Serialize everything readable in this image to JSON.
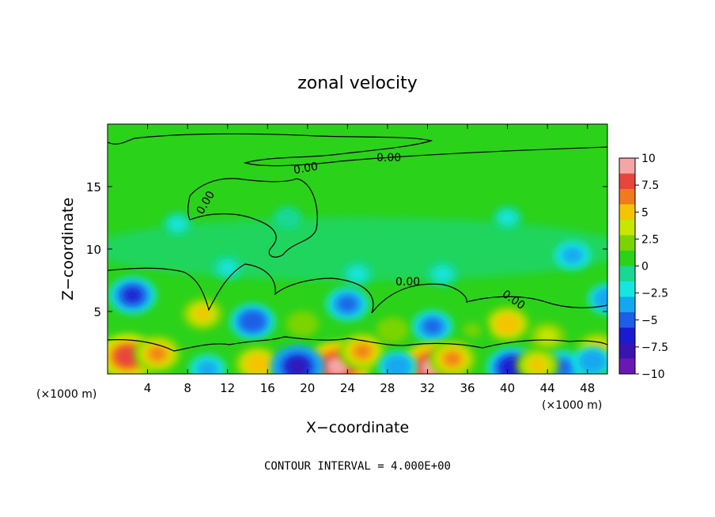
{
  "chart_data": {
    "type": "heatmap",
    "title": "zonal velocity",
    "xlabel": "X−coordinate",
    "ylabel": "Z−coordinate",
    "x_unit_left": "(×1000 m)",
    "x_unit_right": "(×1000 m)",
    "x_ticks": [
      4,
      8,
      12,
      16,
      20,
      24,
      28,
      32,
      36,
      40,
      44,
      48
    ],
    "y_ticks": [
      5,
      10,
      15
    ],
    "xlim": [
      0,
      50
    ],
    "ylim": [
      0,
      20
    ],
    "contour_labels": [
      "0.00",
      "0.00",
      "0.00",
      "0.00",
      "0.00"
    ],
    "footer": "CONTOUR INTERVAL = 4.000E+00",
    "colorbar": {
      "ticks": [
        "10",
        "7.5",
        "5",
        "2.5",
        "0",
        "−2.5",
        "−5",
        "−7.5",
        "−10"
      ],
      "tick_values": [
        10,
        7.5,
        5,
        2.5,
        0,
        -2.5,
        -5,
        -7.5,
        -10
      ],
      "colors": [
        "#f4a6a6",
        "#e8453c",
        "#f07a1e",
        "#f5c400",
        "#c8e600",
        "#7ad400",
        "#2bd21a",
        "#18d894",
        "#16e6e0",
        "#12a8f0",
        "#1e5ee6",
        "#1a1ad0",
        "#3a14b0",
        "#6a18b4"
      ]
    },
    "blobs": [
      {
        "x": 2.5,
        "y": 6.3,
        "v": -6.0
      },
      {
        "x": 14.5,
        "y": 4.2,
        "v": -5.5
      },
      {
        "x": 24.0,
        "y": 5.6,
        "v": -5.0
      },
      {
        "x": 32.5,
        "y": 3.8,
        "v": -4.5
      },
      {
        "x": 46.5,
        "y": 9.5,
        "v": -3.5
      },
      {
        "x": 25.0,
        "y": 8.0,
        "v": -2.2
      },
      {
        "x": 33.5,
        "y": 8.0,
        "v": -2.2
      },
      {
        "x": 7.0,
        "y": 12.0,
        "v": -1.6
      },
      {
        "x": 40.0,
        "y": 12.5,
        "v": -1.6
      },
      {
        "x": 18.0,
        "y": 12.5,
        "v": -1.4
      },
      {
        "x": 12.0,
        "y": 8.5,
        "v": -2.0
      },
      {
        "x": 50.0,
        "y": 6.0,
        "v": -4.0
      },
      {
        "x": 40.0,
        "y": 4.0,
        "v": 5.5
      },
      {
        "x": 9.5,
        "y": 4.8,
        "v": 4.5
      },
      {
        "x": 19.5,
        "y": 4.0,
        "v": 2.5
      },
      {
        "x": 28.5,
        "y": 3.5,
        "v": 2.5
      },
      {
        "x": 36.5,
        "y": 3.5,
        "v": 2.0
      },
      {
        "x": 44.0,
        "y": 3.0,
        "v": 3.5
      },
      {
        "x": 49.0,
        "y": 2.0,
        "v": 4.5
      },
      {
        "x": 2.0,
        "y": 1.4,
        "v": 8.5
      },
      {
        "x": 5.0,
        "y": 1.6,
        "v": 6.0
      },
      {
        "x": 15.0,
        "y": 0.8,
        "v": 5.5
      },
      {
        "x": 23.0,
        "y": 0.6,
        "v": 10.0
      },
      {
        "x": 25.5,
        "y": 1.8,
        "v": 6.0
      },
      {
        "x": 32.5,
        "y": 0.5,
        "v": 10.0
      },
      {
        "x": 34.5,
        "y": 1.2,
        "v": 6.0
      },
      {
        "x": 19.0,
        "y": 0.6,
        "v": -7.5
      },
      {
        "x": 40.5,
        "y": 0.5,
        "v": -7.0
      },
      {
        "x": 45.5,
        "y": 0.5,
        "v": -5.0
      },
      {
        "x": 29.0,
        "y": 0.6,
        "v": -4.0
      },
      {
        "x": 10.0,
        "y": 0.4,
        "v": -3.5
      },
      {
        "x": 43.0,
        "y": 0.7,
        "v": 5.0
      },
      {
        "x": 48.5,
        "y": 1.0,
        "v": -4.0
      }
    ]
  }
}
